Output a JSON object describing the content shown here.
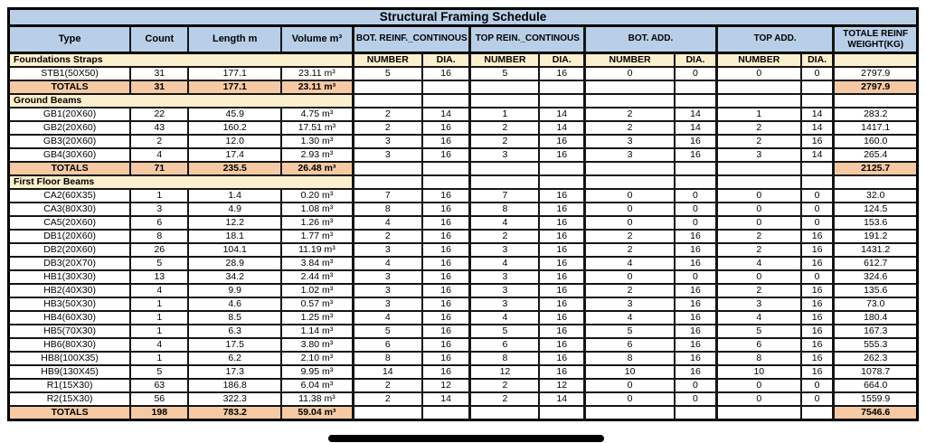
{
  "title": "Structural Framing Schedule",
  "columns": {
    "type": "Type",
    "count": "Count",
    "length": "Length m",
    "volume": "Volume m³",
    "groups": [
      {
        "label": "BOT. REINF._CONTINOUS"
      },
      {
        "label": "TOP REIN._CONTINOUS"
      },
      {
        "label": "BOT. ADD."
      },
      {
        "label": "TOP ADD."
      }
    ],
    "weight": "TOTALE REINF WEIGHT(KG)",
    "sub_number": "NUMBER",
    "sub_dia": "DIA."
  },
  "totals_label": "TOTALS",
  "sections": [
    {
      "name": "Foundations Straps",
      "subheader": true,
      "rows": [
        {
          "type": "STB1(50X50)",
          "count": "31",
          "length": "177.1",
          "volume": "23.11 m³",
          "reinf": [
            "5",
            "16",
            "5",
            "16",
            "0",
            "0",
            "0",
            "0"
          ],
          "weight": "2797.9"
        }
      ],
      "totals": {
        "count": "31",
        "length": "177.1",
        "volume": "23.11 m³",
        "weight": "2797.9"
      }
    },
    {
      "name": "Ground Beams",
      "subheader": false,
      "rows": [
        {
          "type": "GB1(20X60)",
          "count": "22",
          "length": "45.9",
          "volume": "4.75 m³",
          "reinf": [
            "2",
            "14",
            "1",
            "14",
            "2",
            "14",
            "1",
            "14"
          ],
          "weight": "283.2"
        },
        {
          "type": "GB2(20X60)",
          "count": "43",
          "length": "160.2",
          "volume": "17.51 m³",
          "reinf": [
            "2",
            "16",
            "2",
            "14",
            "2",
            "14",
            "2",
            "14"
          ],
          "weight": "1417.1"
        },
        {
          "type": "GB3(20X60)",
          "count": "2",
          "length": "12.0",
          "volume": "1.30 m³",
          "reinf": [
            "3",
            "16",
            "2",
            "16",
            "3",
            "16",
            "2",
            "16"
          ],
          "weight": "160.0"
        },
        {
          "type": "GB4(30X60)",
          "count": "4",
          "length": "17.4",
          "volume": "2.93 m³",
          "reinf": [
            "3",
            "16",
            "3",
            "16",
            "3",
            "16",
            "3",
            "14"
          ],
          "weight": "265.4"
        }
      ],
      "totals": {
        "count": "71",
        "length": "235.5",
        "volume": "26.48 m³",
        "weight": "2125.7"
      }
    },
    {
      "name": "First Floor Beams",
      "subheader": false,
      "rows": [
        {
          "type": "CA2(60X35)",
          "count": "1",
          "length": "1.4",
          "volume": "0.20 m³",
          "reinf": [
            "7",
            "16",
            "7",
            "16",
            "0",
            "0",
            "0",
            "0"
          ],
          "weight": "32.0"
        },
        {
          "type": "CA3(80X30)",
          "count": "3",
          "length": "4.9",
          "volume": "1.08 m³",
          "reinf": [
            "8",
            "16",
            "8",
            "16",
            "0",
            "0",
            "0",
            "0"
          ],
          "weight": "124.5"
        },
        {
          "type": "CA5(20X60)",
          "count": "6",
          "length": "12.2",
          "volume": "1.26 m³",
          "reinf": [
            "4",
            "16",
            "4",
            "16",
            "0",
            "0",
            "0",
            "0"
          ],
          "weight": "153.6"
        },
        {
          "type": "DB1(20X60)",
          "count": "8",
          "length": "18.1",
          "volume": "1.77 m³",
          "reinf": [
            "2",
            "16",
            "2",
            "16",
            "2",
            "16",
            "2",
            "16"
          ],
          "weight": "191.2"
        },
        {
          "type": "DB2(20X60)",
          "count": "26",
          "length": "104.1",
          "volume": "11.19 m³",
          "reinf": [
            "3",
            "16",
            "3",
            "16",
            "2",
            "16",
            "2",
            "16"
          ],
          "weight": "1431.2"
        },
        {
          "type": "DB3(20X70)",
          "count": "5",
          "length": "28.9",
          "volume": "3.84 m³",
          "reinf": [
            "4",
            "16",
            "4",
            "16",
            "4",
            "16",
            "4",
            "16"
          ],
          "weight": "612.7"
        },
        {
          "type": "HB1(30X30)",
          "count": "13",
          "length": "34.2",
          "volume": "2.44 m³",
          "reinf": [
            "3",
            "16",
            "3",
            "16",
            "0",
            "0",
            "0",
            "0"
          ],
          "weight": "324.6"
        },
        {
          "type": "HB2(40X30)",
          "count": "4",
          "length": "9.9",
          "volume": "1.02 m³",
          "reinf": [
            "3",
            "16",
            "3",
            "16",
            "2",
            "16",
            "2",
            "16"
          ],
          "weight": "135.6"
        },
        {
          "type": "HB3(50X30)",
          "count": "1",
          "length": "4.6",
          "volume": "0.57 m³",
          "reinf": [
            "3",
            "16",
            "3",
            "16",
            "3",
            "16",
            "3",
            "16"
          ],
          "weight": "73.0"
        },
        {
          "type": "HB4(60X30)",
          "count": "1",
          "length": "8.5",
          "volume": "1.25 m³",
          "reinf": [
            "4",
            "16",
            "4",
            "16",
            "4",
            "16",
            "4",
            "16"
          ],
          "weight": "180.4"
        },
        {
          "type": "HB5(70X30)",
          "count": "1",
          "length": "6.3",
          "volume": "1.14 m³",
          "reinf": [
            "5",
            "16",
            "5",
            "16",
            "5",
            "16",
            "5",
            "16"
          ],
          "weight": "167.3"
        },
        {
          "type": "HB6(80X30)",
          "count": "4",
          "length": "17.5",
          "volume": "3.80 m³",
          "reinf": [
            "6",
            "16",
            "6",
            "16",
            "6",
            "16",
            "6",
            "16"
          ],
          "weight": "555.3"
        },
        {
          "type": "HB8(100X35)",
          "count": "1",
          "length": "6.2",
          "volume": "2.10 m³",
          "reinf": [
            "8",
            "16",
            "8",
            "16",
            "8",
            "16",
            "8",
            "16"
          ],
          "weight": "262.3"
        },
        {
          "type": "HB9(130X45)",
          "count": "5",
          "length": "17.3",
          "volume": "9.95 m³",
          "reinf": [
            "14",
            "16",
            "12",
            "16",
            "10",
            "16",
            "10",
            "16"
          ],
          "weight": "1078.7"
        },
        {
          "type": "R1(15X30)",
          "count": "63",
          "length": "186.8",
          "volume": "6.04 m³",
          "reinf": [
            "2",
            "12",
            "2",
            "12",
            "0",
            "0",
            "0",
            "0"
          ],
          "weight": "664.0"
        },
        {
          "type": "R2(15X30)",
          "count": "56",
          "length": "322.3",
          "volume": "11.38 m³",
          "reinf": [
            "2",
            "14",
            "2",
            "14",
            "0",
            "0",
            "0",
            "0"
          ],
          "weight": "1559.9"
        }
      ],
      "totals": {
        "count": "198",
        "length": "783.2",
        "volume": "59.04 m³",
        "weight": "7546.6"
      }
    }
  ]
}
